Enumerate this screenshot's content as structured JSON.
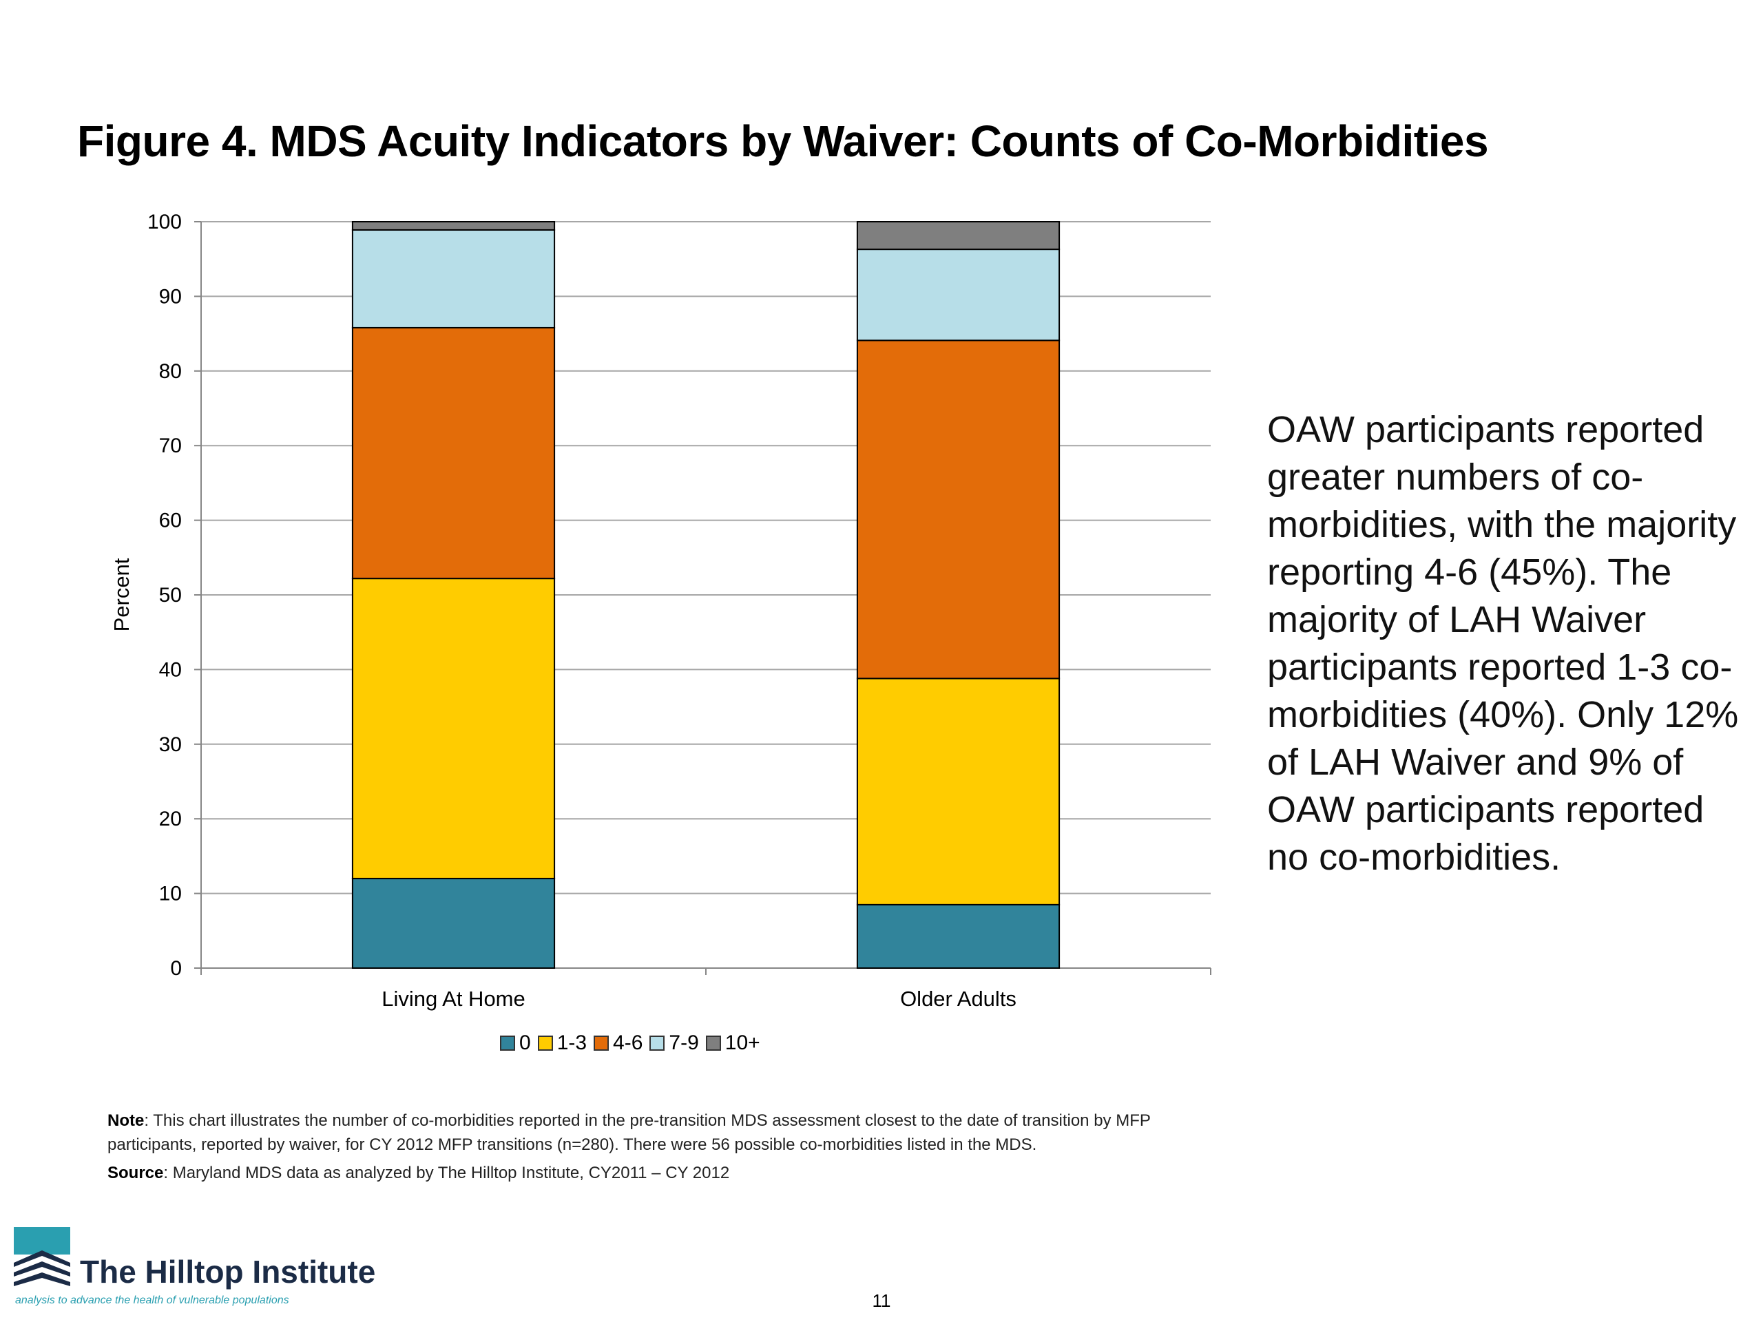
{
  "title": "Figure 4. MDS Acuity Indicators by Waiver: Counts of Co-Morbidities",
  "callout": "OAW participants reported greater numbers of co-morbidities, with the majority reporting 4-6 (45%). The majority of LAH Waiver participants reported 1-3 co-morbidities (40%). Only 12% of LAH Waiver and 9% of OAW participants reported no co-morbidities.",
  "note": {
    "label": "Note",
    "text": ": This chart illustrates the number of co-morbidities reported in the pre-transition MDS assessment closest to the date of transition by MFP participants, reported by waiver, for CY 2012 MFP transitions (n=280).  There were 56 possible co-morbidities listed in the MDS."
  },
  "source": {
    "label": "Source",
    "text": ": Maryland MDS data as analyzed by The Hilltop Institute, CY2011 – CY 2012"
  },
  "logo": {
    "name": "The Hilltop Institute",
    "tagline": "analysis to advance the health of vulnerable populations"
  },
  "page_number": "11",
  "colors": {
    "0": "#31849b",
    "1-3": "#ffcc00",
    "4-6": "#e36c09",
    "7-9": "#b7dee8",
    "10+": "#7f7f7f",
    "grid": "#a6a6a6",
    "logo_teal": "#2a9fb0",
    "logo_navy": "#1b2b46"
  },
  "chart_data": {
    "type": "bar",
    "stacked": true,
    "categories": [
      "Living At Home",
      "Older Adults"
    ],
    "series": [
      {
        "name": "0",
        "color": "#31849b",
        "values": [
          12,
          8.5
        ]
      },
      {
        "name": "1-3",
        "color": "#ffcc00",
        "values": [
          40.2,
          30.3
        ]
      },
      {
        "name": "4-6",
        "color": "#e36c09",
        "values": [
          33.6,
          45.3
        ]
      },
      {
        "name": "7-9",
        "color": "#b7dee8",
        "values": [
          13.1,
          12.2
        ]
      },
      {
        "name": "10+",
        "color": "#7f7f7f",
        "values": [
          1.1,
          3.7
        ]
      }
    ],
    "ylabel": "Percent",
    "ylim": [
      0,
      100
    ],
    "yticks": [
      0,
      10,
      20,
      30,
      40,
      50,
      60,
      70,
      80,
      90,
      100
    ],
    "grid": true,
    "legend_position": "bottom"
  }
}
